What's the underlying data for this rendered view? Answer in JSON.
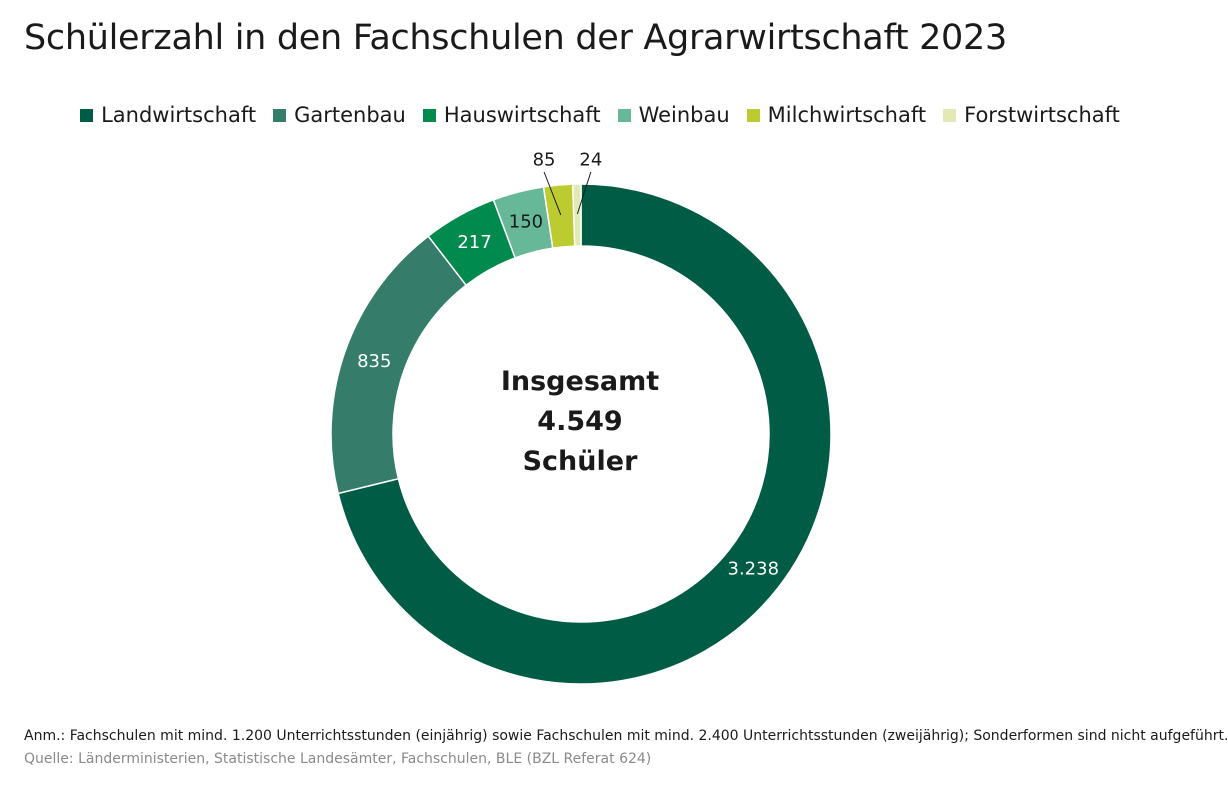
{
  "title": "Schülerzahl in den Fachschulen der Agrarwirtschaft 2023",
  "center": {
    "line1": "Insgesamt",
    "line2": "4.549",
    "line3": "Schüler"
  },
  "note": "Anm.: Fachschulen mit mind. 1.200 Unterrichtsstunden (einjährig) sowie Fachschulen mit mind. 2.400 Unterrichtsstunden (zweijährig); Sonderformen sind nicht aufgeführt.",
  "source": "Quelle: Länderministerien, Statistische Landesämter, Fachschulen, BLE (BZL Referat 624)",
  "chart_data": {
    "type": "pie",
    "variant": "donut",
    "title": "Schülerzahl in den Fachschulen der Agrarwirtschaft 2023",
    "legend_position": "top",
    "total": 4549,
    "total_label": "4.549",
    "categories": [
      "Landwirtschaft",
      "Gartenbau",
      "Hauswirtschaft",
      "Weinbau",
      "Milchwirtschaft",
      "Forstwirtschaft"
    ],
    "values": [
      3238,
      835,
      217,
      150,
      85,
      24
    ],
    "value_labels": [
      "3.238",
      "835",
      "217",
      "150",
      "85",
      "24"
    ],
    "colors": [
      "#005c45",
      "#357c6a",
      "#008a4e",
      "#66b898",
      "#bccb2f",
      "#e2e9b4"
    ],
    "label_text_colors": [
      "#ffffff",
      "#ffffff",
      "#ffffff",
      "#1a1a1a",
      "#1a1a1a",
      "#1a1a1a"
    ],
    "outside_labels": [
      false,
      false,
      false,
      false,
      true,
      true
    ]
  }
}
